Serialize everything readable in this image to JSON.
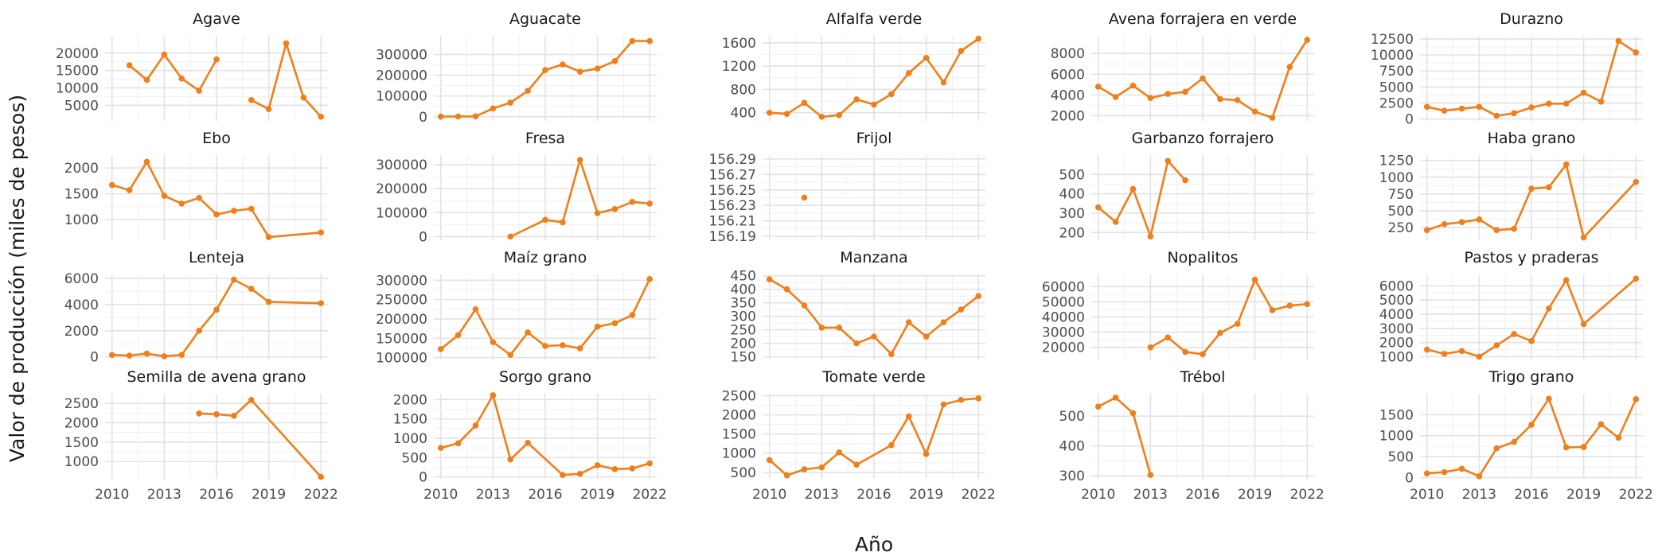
{
  "chart_data": {
    "type": "line",
    "layout": "facet-grid",
    "xlabel": "Año",
    "ylabel": "Valor de producción (miles de pesos)",
    "series_color": "#f07f19",
    "x_ticks": [
      "2010",
      "2013",
      "2016",
      "2019",
      "2022"
    ],
    "xlim": [
      2009.6,
      2022.4
    ],
    "grid": true,
    "legend": "none",
    "panels": [
      {
        "title": "Agave",
        "ylim": [
          500,
          25000
        ],
        "yticks": [
          5000,
          10000,
          15000,
          20000
        ],
        "ytick_labels": [
          "5000",
          "10000",
          "15000",
          "20000"
        ],
        "x": [
          2011,
          2012,
          2013,
          2014,
          2015,
          2016,
          2018,
          2019,
          2020,
          2021,
          2022
        ],
        "y": [
          16500,
          12300,
          19600,
          12700,
          9200,
          18200,
          6500,
          3900,
          22800,
          7200,
          1700
        ],
        "segments": [
          [
            2011,
            2016
          ],
          [
            2018,
            2022
          ]
        ]
      },
      {
        "title": "Aguacate",
        "ylim": [
          -20000,
          390000
        ],
        "yticks": [
          0,
          100000,
          200000,
          300000
        ],
        "ytick_labels": [
          "0",
          "100000",
          "200000",
          "300000"
        ],
        "x": [
          2010,
          2011,
          2012,
          2013,
          2014,
          2015,
          2016,
          2017,
          2018,
          2019,
          2020,
          2021,
          2022
        ],
        "y": [
          1000,
          1500,
          2000,
          40000,
          68000,
          125000,
          225000,
          252000,
          217000,
          232000,
          268000,
          365000,
          365000
        ],
        "xs_note": "",
        "segments": [
          [
            2010,
            2022
          ]
        ]
      },
      {
        "title": "Alfalfa verde",
        "ylim": [
          260,
          1720
        ],
        "yticks": [
          400,
          800,
          1200,
          1600
        ],
        "ytick_labels": [
          "400",
          "800",
          "1200",
          "1600"
        ],
        "x": [
          2010,
          2011,
          2012,
          2013,
          2014,
          2015,
          2016,
          2017,
          2018,
          2019,
          2020,
          2021,
          2022
        ],
        "y": [
          400,
          380,
          570,
          330,
          360,
          630,
          540,
          720,
          1080,
          1340,
          920,
          1460,
          1670
        ],
        "segments": [
          [
            2010,
            2022
          ]
        ]
      },
      {
        "title": "Avena forrajera en verde",
        "ylim": [
          1500,
          9700
        ],
        "yticks": [
          2000,
          4000,
          6000,
          8000
        ],
        "ytick_labels": [
          "2000",
          "4000",
          "6000",
          "8000"
        ],
        "x": [
          2010,
          2011,
          2012,
          2013,
          2014,
          2015,
          2016,
          2017,
          2018,
          2019,
          2020,
          2021,
          2022
        ],
        "y": [
          4800,
          3800,
          4900,
          3700,
          4100,
          4300,
          5600,
          3600,
          3500,
          2400,
          1800,
          6700,
          9300
        ],
        "segments": [
          [
            2010,
            2022
          ]
        ]
      },
      {
        "title": "Durazno",
        "ylim": [
          -300,
          13000
        ],
        "yticks": [
          0,
          2500,
          5000,
          7500,
          10000,
          12500
        ],
        "ytick_labels": [
          "0",
          "2500",
          "5000",
          "7500",
          "10000",
          "12500"
        ],
        "x": [
          2010,
          2011,
          2012,
          2013,
          2014,
          2015,
          2016,
          2017,
          2018,
          2019,
          2020,
          2021,
          2022
        ],
        "y": [
          1900,
          1300,
          1600,
          1900,
          500,
          900,
          1800,
          2400,
          2400,
          4100,
          2700,
          12200,
          10400
        ],
        "segments": [
          [
            2010,
            2022
          ]
        ]
      },
      {
        "title": "Ebo",
        "ylim": [
          600,
          2250
        ],
        "yticks": [
          1000,
          1500,
          2000
        ],
        "ytick_labels": [
          "1000",
          "1500",
          "2000"
        ],
        "x": [
          2010,
          2011,
          2012,
          2013,
          2014,
          2015,
          2016,
          2017,
          2018,
          2019,
          2022
        ],
        "y": [
          1670,
          1570,
          2120,
          1460,
          1310,
          1420,
          1100,
          1170,
          1210,
          660,
          750
        ],
        "segments": [
          [
            2010,
            2019
          ],
          [
            2019,
            2022
          ]
        ]
      },
      {
        "title": "Fresa",
        "ylim": [
          -15000,
          340000
        ],
        "yticks": [
          0,
          100000,
          200000,
          300000
        ],
        "ytick_labels": [
          "0",
          "100000",
          "200000",
          "300000"
        ],
        "x": [
          2014,
          2016,
          2017,
          2018,
          2019,
          2020,
          2021,
          2022
        ],
        "y": [
          0,
          70000,
          60000,
          320000,
          98000,
          115000,
          145000,
          138000
        ],
        "segments": [
          [
            2014,
            2022
          ]
        ]
      },
      {
        "title": "Frijol",
        "ylim": [
          156.185,
          156.295
        ],
        "yticks": [
          156.19,
          156.21,
          156.23,
          156.25,
          156.27,
          156.29
        ],
        "ytick_labels": [
          "156.19",
          "156.21",
          "156.23",
          "156.25",
          "156.27",
          "156.29"
        ],
        "x": [
          2012
        ],
        "y": [
          156.24
        ],
        "segments": []
      },
      {
        "title": "Garbanzo forrajero",
        "ylim": [
          160,
          600
        ],
        "yticks": [
          200,
          300,
          400,
          500
        ],
        "ytick_labels": [
          "200",
          "300",
          "400",
          "500"
        ],
        "x": [
          2010,
          2011,
          2012,
          2013,
          2014,
          2015
        ],
        "y": [
          330,
          255,
          425,
          180,
          570,
          470
        ],
        "segments": [
          [
            2010,
            2015
          ]
        ]
      },
      {
        "title": "Haba grano",
        "ylim": [
          60,
          1330
        ],
        "yticks": [
          250,
          500,
          750,
          1000,
          1250
        ],
        "ytick_labels": [
          "250",
          "500",
          "750",
          "1000",
          "1250"
        ],
        "x": [
          2010,
          2011,
          2012,
          2013,
          2014,
          2015,
          2016,
          2017,
          2018,
          2019,
          2022
        ],
        "y": [
          210,
          300,
          330,
          370,
          210,
          230,
          830,
          850,
          1190,
          100,
          930
        ],
        "segments": [
          [
            2010,
            2019
          ],
          [
            2019,
            2022
          ]
        ]
      },
      {
        "title": "Lenteja",
        "ylim": [
          -200,
          6300
        ],
        "yticks": [
          0,
          2000,
          4000,
          6000
        ],
        "ytick_labels": [
          "0",
          "2000",
          "4000",
          "6000"
        ],
        "x": [
          2010,
          2011,
          2012,
          2013,
          2014,
          2015,
          2016,
          2017,
          2018,
          2019,
          2022
        ],
        "y": [
          150,
          100,
          250,
          50,
          150,
          2000,
          3600,
          5900,
          5200,
          4200,
          4100
        ],
        "segments": [
          [
            2010,
            2019
          ],
          [
            2019,
            2022
          ]
        ]
      },
      {
        "title": "Maíz grano",
        "ylim": [
          95000,
          315000
        ],
        "yticks": [
          100000,
          150000,
          200000,
          250000,
          300000
        ],
        "ytick_labels": [
          "100000",
          "150000",
          "200000",
          "250000",
          "300000"
        ],
        "x": [
          2010,
          2011,
          2012,
          2013,
          2014,
          2015,
          2016,
          2017,
          2018,
          2019,
          2020,
          2021,
          2022
        ],
        "y": [
          122000,
          158000,
          225000,
          140000,
          107000,
          165000,
          130000,
          132000,
          124000,
          180000,
          189000,
          210000,
          303000
        ],
        "segments": [
          [
            2010,
            2022
          ]
        ]
      },
      {
        "title": "Manzana",
        "ylim": [
          140,
          455
        ],
        "yticks": [
          150,
          200,
          250,
          300,
          350,
          400,
          450
        ],
        "ytick_labels": [
          "150",
          "200",
          "250",
          "300",
          "350",
          "400",
          "450"
        ],
        "x": [
          2010,
          2011,
          2012,
          2013,
          2014,
          2015,
          2016,
          2017,
          2018,
          2019,
          2020,
          2021,
          2022
        ],
        "y": [
          437,
          400,
          340,
          258,
          258,
          200,
          225,
          160,
          278,
          225,
          278,
          325,
          375
        ],
        "segments": [
          [
            2010,
            2022
          ]
        ]
      },
      {
        "title": "Nopalitos",
        "ylim": [
          12000,
          68000
        ],
        "yticks": [
          20000,
          30000,
          40000,
          50000,
          60000
        ],
        "ytick_labels": [
          "20000",
          "30000",
          "40000",
          "50000",
          "60000"
        ],
        "x": [
          2013,
          2014,
          2015,
          2016,
          2017,
          2018,
          2019,
          2020,
          2021,
          2022
        ],
        "y": [
          20000,
          26500,
          17000,
          15500,
          29500,
          35500,
          64500,
          44500,
          47500,
          48500
        ],
        "segments": [
          [
            2013,
            2022
          ]
        ]
      },
      {
        "title": "Pastos y praderas",
        "ylim": [
          800,
          6800
        ],
        "yticks": [
          1000,
          2000,
          3000,
          4000,
          5000,
          6000
        ],
        "ytick_labels": [
          "1000",
          "2000",
          "3000",
          "4000",
          "5000",
          "6000"
        ],
        "x": [
          2010,
          2011,
          2012,
          2013,
          2014,
          2015,
          2016,
          2017,
          2018,
          2019,
          2022
        ],
        "y": [
          1500,
          1200,
          1400,
          1000,
          1800,
          2600,
          2100,
          4400,
          6400,
          3300,
          6500
        ],
        "segments": [
          [
            2010,
            2019
          ],
          [
            2019,
            2022
          ]
        ]
      },
      {
        "title": "Semilla de avena grano",
        "ylim": [
          550,
          2750
        ],
        "yticks": [
          1000,
          1500,
          2000,
          2500
        ],
        "ytick_labels": [
          "1000",
          "1500",
          "2000",
          "2500"
        ],
        "x": [
          2015,
          2016,
          2017,
          2018,
          2022
        ],
        "y": [
          2240,
          2220,
          2180,
          2590,
          600
        ],
        "segments": [
          [
            2015,
            2018
          ],
          [
            2018,
            2022
          ]
        ]
      },
      {
        "title": "Sorgo grano",
        "ylim": [
          -50,
          2150
        ],
        "yticks": [
          0,
          500,
          1000,
          1500,
          2000
        ],
        "ytick_labels": [
          "0",
          "500",
          "1000",
          "1500",
          "2000"
        ],
        "x": [
          2010,
          2011,
          2012,
          2013,
          2014,
          2015,
          2017,
          2018,
          2019,
          2020,
          2021,
          2022
        ],
        "y": [
          750,
          870,
          1330,
          2110,
          450,
          880,
          50,
          80,
          300,
          200,
          220,
          350
        ],
        "segments": [
          [
            2010,
            2015
          ],
          [
            2015,
            2017
          ],
          [
            2017,
            2022
          ]
        ]
      },
      {
        "title": "Tomate verde",
        "ylim": [
          330,
          2550
        ],
        "yticks": [
          500,
          1000,
          1500,
          2000,
          2500
        ],
        "ytick_labels": [
          "500",
          "1000",
          "1500",
          "2000",
          "2500"
        ],
        "x": [
          2010,
          2011,
          2012,
          2013,
          2014,
          2015,
          2017,
          2018,
          2019,
          2020,
          2021,
          2022
        ],
        "y": [
          820,
          420,
          580,
          630,
          1020,
          700,
          1210,
          1960,
          980,
          2270,
          2390,
          2430
        ],
        "segments": [
          [
            2010,
            2015
          ],
          [
            2015,
            2017
          ],
          [
            2017,
            2022
          ]
        ]
      },
      {
        "title": "Trébol",
        "ylim": [
          290,
          575
        ],
        "yticks": [
          300,
          400,
          500
        ],
        "ytick_labels": [
          "300",
          "400",
          "500"
        ],
        "x": [
          2010,
          2011,
          2012,
          2013
        ],
        "y": [
          532,
          562,
          510,
          303
        ],
        "segments": [
          [
            2010,
            2013
          ]
        ]
      },
      {
        "title": "Trigo grano",
        "ylim": [
          -30,
          2000
        ],
        "yticks": [
          0,
          500,
          1000,
          1500
        ],
        "ytick_labels": [
          "0",
          "500",
          "1000",
          "1500"
        ],
        "x": [
          2010,
          2011,
          2012,
          2013,
          2014,
          2015,
          2016,
          2017,
          2018,
          2019,
          2020,
          2021,
          2022
        ],
        "y": [
          100,
          130,
          210,
          30,
          700,
          850,
          1260,
          1880,
          720,
          730,
          1270,
          950,
          1870
        ],
        "segments": [
          [
            2010,
            2022
          ]
        ]
      }
    ]
  }
}
